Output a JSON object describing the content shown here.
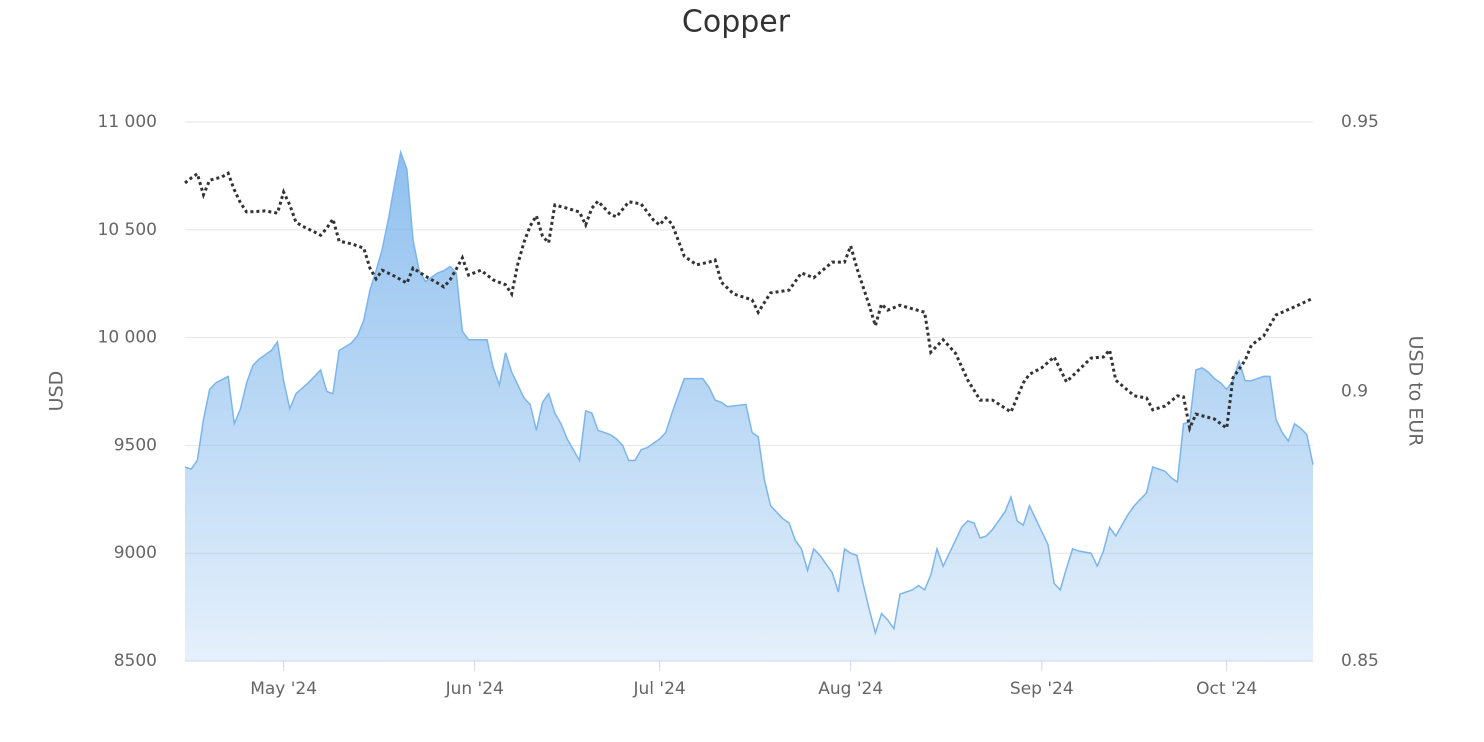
{
  "chart_data": {
    "type": "area",
    "title": "Copper",
    "y_label": "USD",
    "y2_label": "USD to EUR",
    "xlim": [
      0,
      183
    ],
    "xticks": [
      {
        "value": 16,
        "label": "May '24"
      },
      {
        "value": 47,
        "label": "Jun '24"
      },
      {
        "value": 77,
        "label": "Jul '24"
      },
      {
        "value": 108,
        "label": "Aug '24"
      },
      {
        "value": 139,
        "label": "Sep '24"
      },
      {
        "value": 169,
        "label": "Oct '24"
      }
    ],
    "ylim": [
      8500,
      11000
    ],
    "yticks": [
      8500,
      9000,
      9500,
      {
        "value": 10000,
        "label": "10 000"
      },
      {
        "value": 10500,
        "label": "10 500"
      },
      {
        "value": 11000,
        "label": "11 000"
      }
    ],
    "y2lim": [
      0.85,
      0.95
    ],
    "y2ticks": [
      0.85,
      0.9,
      0.95
    ],
    "grid": true,
    "series": [
      {
        "type": "area",
        "color": "#7cb5ec",
        "x": [
          0,
          1,
          2,
          3,
          4,
          5,
          7,
          8,
          9,
          10,
          11,
          12,
          14,
          15,
          16,
          17,
          18,
          20,
          22,
          23,
          24,
          25,
          27,
          28,
          29,
          30,
          31,
          32,
          33,
          34,
          35,
          36,
          37,
          38,
          39,
          40,
          41,
          42,
          43,
          44,
          45,
          46,
          47,
          49,
          50,
          51,
          52,
          53,
          54,
          55,
          56,
          57,
          58,
          59,
          60,
          61,
          62,
          63,
          64,
          65,
          66,
          67,
          68,
          69,
          70,
          71,
          72,
          73,
          74,
          75,
          76,
          77,
          78,
          79,
          80,
          81,
          82,
          84,
          85,
          86,
          87,
          88,
          91,
          92,
          93,
          94,
          95,
          96,
          97,
          98,
          99,
          100,
          101,
          102,
          103,
          104,
          105,
          106,
          107,
          108,
          109,
          110,
          111,
          112,
          113,
          114,
          115,
          116,
          117,
          118,
          119,
          120,
          121,
          122,
          123,
          124,
          125,
          126,
          127,
          128,
          129,
          130,
          131,
          132,
          133,
          134,
          135,
          136,
          137,
          138,
          139,
          140,
          141,
          142,
          143,
          144,
          145,
          147,
          148,
          149,
          150,
          151,
          152,
          153,
          154,
          155,
          156,
          157,
          158,
          159,
          160,
          161,
          162,
          163,
          164,
          165,
          166,
          167,
          168,
          169,
          170,
          171,
          172,
          173,
          174,
          175,
          176,
          177,
          178,
          179,
          180,
          181,
          182,
          183
        ],
        "values": [
          9400,
          9390,
          9430,
          9620,
          9760,
          9790,
          9820,
          9600,
          9670,
          9790,
          9870,
          9900,
          9940,
          9980,
          9800,
          9670,
          9740,
          9790,
          9850,
          9750,
          9740,
          9940,
          9975,
          10010,
          10080,
          10220,
          10310,
          10410,
          10550,
          10710,
          10860,
          10780,
          10450,
          10310,
          10260,
          10280,
          10300,
          10310,
          10330,
          10300,
          10030,
          9990,
          9990,
          9990,
          9860,
          9780,
          9930,
          9840,
          9780,
          9720,
          9690,
          9570,
          9700,
          9740,
          9650,
          9600,
          9530,
          9480,
          9430,
          9660,
          9650,
          9570,
          9560,
          9550,
          9530,
          9500,
          9430,
          9430,
          9480,
          9490,
          9510,
          9530,
          9560,
          9650,
          9730,
          9810,
          9810,
          9810,
          9770,
          9710,
          9700,
          9680,
          9690,
          9560,
          9540,
          9340,
          9220,
          9190,
          9160,
          9140,
          9060,
          9020,
          8920,
          9020,
          8990,
          8950,
          8910,
          8820,
          9020,
          9000,
          8990,
          8860,
          8740,
          8630,
          8720,
          8690,
          8650,
          8810,
          8820,
          8830,
          8850,
          8830,
          8900,
          9020,
          8940,
          9000,
          9060,
          9120,
          9150,
          9140,
          9070,
          9080,
          9110,
          9150,
          9190,
          9260,
          9150,
          9130,
          9220,
          9160,
          9100,
          9040,
          8860,
          8830,
          8930,
          9020,
          9010,
          9000,
          8940,
          9010,
          9120,
          9080,
          9130,
          9180,
          9220,
          9250,
          9280,
          9400,
          9390,
          9380,
          9350,
          9330,
          9600,
          9610,
          9850,
          9860,
          9840,
          9810,
          9790,
          9760,
          9800,
          9890,
          9800,
          9800,
          9810,
          9820,
          9820,
          9620,
          9560,
          9520,
          9600,
          9580,
          9550,
          9410
        ]
      },
      {
        "type": "line",
        "axis": "y2",
        "color": "#333333",
        "x": [
          0,
          1,
          2,
          3,
          4,
          6,
          7,
          8,
          9,
          10,
          13,
          15,
          16,
          17,
          18,
          19,
          21,
          22,
          23,
          24,
          25,
          27,
          29,
          30,
          31,
          32,
          34,
          36,
          37,
          39,
          41,
          42,
          43,
          44,
          45,
          46,
          48,
          50,
          52,
          53,
          54,
          55,
          56,
          57,
          58,
          59,
          60,
          62,
          64,
          65,
          66,
          67,
          69,
          70,
          72,
          74,
          76,
          77,
          78,
          79,
          81,
          83,
          85,
          86,
          87,
          89,
          92,
          93,
          95,
          98,
          100,
          102,
          105,
          107,
          108,
          109,
          111,
          112,
          113,
          114,
          116,
          120,
          121,
          123,
          125,
          127,
          129,
          131,
          134,
          136,
          137,
          139,
          141,
          143,
          145,
          147,
          149,
          150,
          151,
          154,
          156,
          157,
          159,
          161,
          162,
          163,
          164,
          167,
          169,
          170,
          172,
          173,
          175,
          177,
          180,
          183
        ],
        "values": [
          0.9387,
          0.9396,
          0.9404,
          0.9365,
          0.9392,
          0.9398,
          0.9405,
          0.9374,
          0.935,
          0.9333,
          0.9335,
          0.9331,
          0.937,
          0.9346,
          0.9314,
          0.9307,
          0.9296,
          0.929,
          0.9303,
          0.932,
          0.9279,
          0.9274,
          0.9266,
          0.9229,
          0.9209,
          0.9225,
          0.9214,
          0.9201,
          0.9229,
          0.9214,
          0.9201,
          0.9194,
          0.9207,
          0.9227,
          0.9248,
          0.9216,
          0.9225,
          0.9207,
          0.9198,
          0.9181,
          0.9237,
          0.9277,
          0.9307,
          0.9326,
          0.9288,
          0.9276,
          0.9346,
          0.934,
          0.9333,
          0.9309,
          0.934,
          0.9353,
          0.9329,
          0.9324,
          0.9352,
          0.9348,
          0.9318,
          0.9309,
          0.9322,
          0.9311,
          0.9251,
          0.9235,
          0.924,
          0.9244,
          0.9203,
          0.9181,
          0.917,
          0.9147,
          0.9183,
          0.9188,
          0.922,
          0.9211,
          0.924,
          0.924,
          0.927,
          0.9229,
          0.916,
          0.9122,
          0.9162,
          0.9151,
          0.916,
          0.9147,
          0.9073,
          0.9096,
          0.9071,
          0.9021,
          0.8984,
          0.8984,
          0.8962,
          0.9016,
          0.9032,
          0.9044,
          0.9064,
          0.9018,
          0.904,
          0.9062,
          0.9064,
          0.9077,
          0.9021,
          0.8992,
          0.8988,
          0.8966,
          0.8973,
          0.8992,
          0.899,
          0.8932,
          0.8958,
          0.8949,
          0.8932,
          0.9025,
          0.9058,
          0.9086,
          0.9103,
          0.9142,
          0.9157,
          0.9173
        ]
      }
    ]
  }
}
